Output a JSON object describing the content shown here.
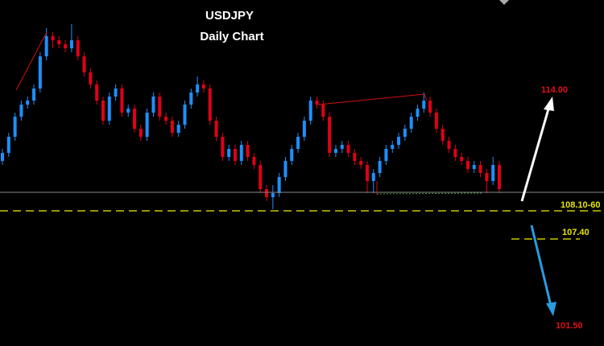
{
  "chart_data": {
    "type": "candlestick",
    "title": "USDJPY",
    "subtitle": "Daily Chart",
    "up_color": "#1e90ff",
    "down_color": "#e0001a",
    "ylim": [
      104.74,
      113.34
    ],
    "candles": [
      [
        109.34,
        109.64,
        109.24,
        109.54
      ],
      [
        109.54,
        110.04,
        109.44,
        109.94
      ],
      [
        109.94,
        110.54,
        109.84,
        110.44
      ],
      [
        110.44,
        110.84,
        110.34,
        110.74
      ],
      [
        110.74,
        110.94,
        110.64,
        110.84
      ],
      [
        110.84,
        111.24,
        110.74,
        111.14
      ],
      [
        111.14,
        112.04,
        111.04,
        111.94
      ],
      [
        111.94,
        112.64,
        111.84,
        112.44
      ],
      [
        112.44,
        112.54,
        112.14,
        112.34
      ],
      [
        112.34,
        112.44,
        112.14,
        112.24
      ],
      [
        112.24,
        112.34,
        112.04,
        112.14
      ],
      [
        112.14,
        112.74,
        112.04,
        112.34
      ],
      [
        112.34,
        112.44,
        111.84,
        111.94
      ],
      [
        111.94,
        112.04,
        111.44,
        111.54
      ],
      [
        111.54,
        111.64,
        111.14,
        111.24
      ],
      [
        111.24,
        111.34,
        110.74,
        110.84
      ],
      [
        110.84,
        110.94,
        110.24,
        110.34
      ],
      [
        110.34,
        111.04,
        110.24,
        110.94
      ],
      [
        110.94,
        111.24,
        110.84,
        111.14
      ],
      [
        111.14,
        111.24,
        110.44,
        110.54
      ],
      [
        110.54,
        110.74,
        110.44,
        110.64
      ],
      [
        110.64,
        110.74,
        110.04,
        110.14
      ],
      [
        110.14,
        110.24,
        109.84,
        109.94
      ],
      [
        109.94,
        110.64,
        109.84,
        110.54
      ],
      [
        110.54,
        111.04,
        110.44,
        110.94
      ],
      [
        110.94,
        111.04,
        110.34,
        110.44
      ],
      [
        110.44,
        110.54,
        110.24,
        110.34
      ],
      [
        110.34,
        110.44,
        109.94,
        110.04
      ],
      [
        110.04,
        110.34,
        109.94,
        110.24
      ],
      [
        110.24,
        110.84,
        110.14,
        110.74
      ],
      [
        110.74,
        111.14,
        110.64,
        111.04
      ],
      [
        111.04,
        111.44,
        110.94,
        111.24
      ],
      [
        111.24,
        111.34,
        111.04,
        111.14
      ],
      [
        111.14,
        111.24,
        110.24,
        110.34
      ],
      [
        110.34,
        110.44,
        109.84,
        109.94
      ],
      [
        109.94,
        110.04,
        109.34,
        109.44
      ],
      [
        109.44,
        109.74,
        109.34,
        109.64
      ],
      [
        109.64,
        109.74,
        109.24,
        109.34
      ],
      [
        109.34,
        109.84,
        109.24,
        109.74
      ],
      [
        109.74,
        109.84,
        109.34,
        109.44
      ],
      [
        109.44,
        109.54,
        109.14,
        109.24
      ],
      [
        109.24,
        109.34,
        108.54,
        108.64
      ],
      [
        108.64,
        108.74,
        108.34,
        108.44
      ],
      [
        108.44,
        108.74,
        108.14,
        108.54
      ],
      [
        108.54,
        109.04,
        108.44,
        108.94
      ],
      [
        108.94,
        109.44,
        108.84,
        109.34
      ],
      [
        109.34,
        109.74,
        109.24,
        109.64
      ],
      [
        109.64,
        110.04,
        109.54,
        109.94
      ],
      [
        109.94,
        110.44,
        109.84,
        110.34
      ],
      [
        110.34,
        110.94,
        110.24,
        110.84
      ],
      [
        110.84,
        110.94,
        110.64,
        110.74
      ],
      [
        110.74,
        110.84,
        110.34,
        110.44
      ],
      [
        110.44,
        110.54,
        109.44,
        109.54
      ],
      [
        109.54,
        109.74,
        109.44,
        109.64
      ],
      [
        109.64,
        109.84,
        109.54,
        109.74
      ],
      [
        109.74,
        109.84,
        109.44,
        109.54
      ],
      [
        109.54,
        109.64,
        109.24,
        109.34
      ],
      [
        109.34,
        109.44,
        109.14,
        109.24
      ],
      [
        109.24,
        109.34,
        108.54,
        108.84
      ],
      [
        108.84,
        109.14,
        108.54,
        109.04
      ],
      [
        109.04,
        109.44,
        108.94,
        109.34
      ],
      [
        109.34,
        109.74,
        109.24,
        109.64
      ],
      [
        109.64,
        109.84,
        109.54,
        109.74
      ],
      [
        109.74,
        110.04,
        109.64,
        109.94
      ],
      [
        109.94,
        110.24,
        109.84,
        110.14
      ],
      [
        110.14,
        110.54,
        110.04,
        110.44
      ],
      [
        110.44,
        110.74,
        110.34,
        110.64
      ],
      [
        110.64,
        111.04,
        110.54,
        110.84
      ],
      [
        110.84,
        110.94,
        110.44,
        110.54
      ],
      [
        110.54,
        110.64,
        110.04,
        110.14
      ],
      [
        110.14,
        110.24,
        109.74,
        109.84
      ],
      [
        109.84,
        109.94,
        109.54,
        109.64
      ],
      [
        109.64,
        109.74,
        109.34,
        109.44
      ],
      [
        109.44,
        109.54,
        109.24,
        109.34
      ],
      [
        109.34,
        109.44,
        109.04,
        109.14
      ],
      [
        109.14,
        109.34,
        109.04,
        109.24
      ],
      [
        109.24,
        109.34,
        108.94,
        109.04
      ],
      [
        109.04,
        109.14,
        108.54,
        108.84
      ],
      [
        108.84,
        109.44,
        108.74,
        109.24
      ],
      [
        109.24,
        109.34,
        108.54,
        108.64
      ]
    ],
    "annotations": {
      "target_up": "114.00",
      "support": "108.10-60",
      "level": "107.40",
      "target_down": "101.50"
    }
  }
}
